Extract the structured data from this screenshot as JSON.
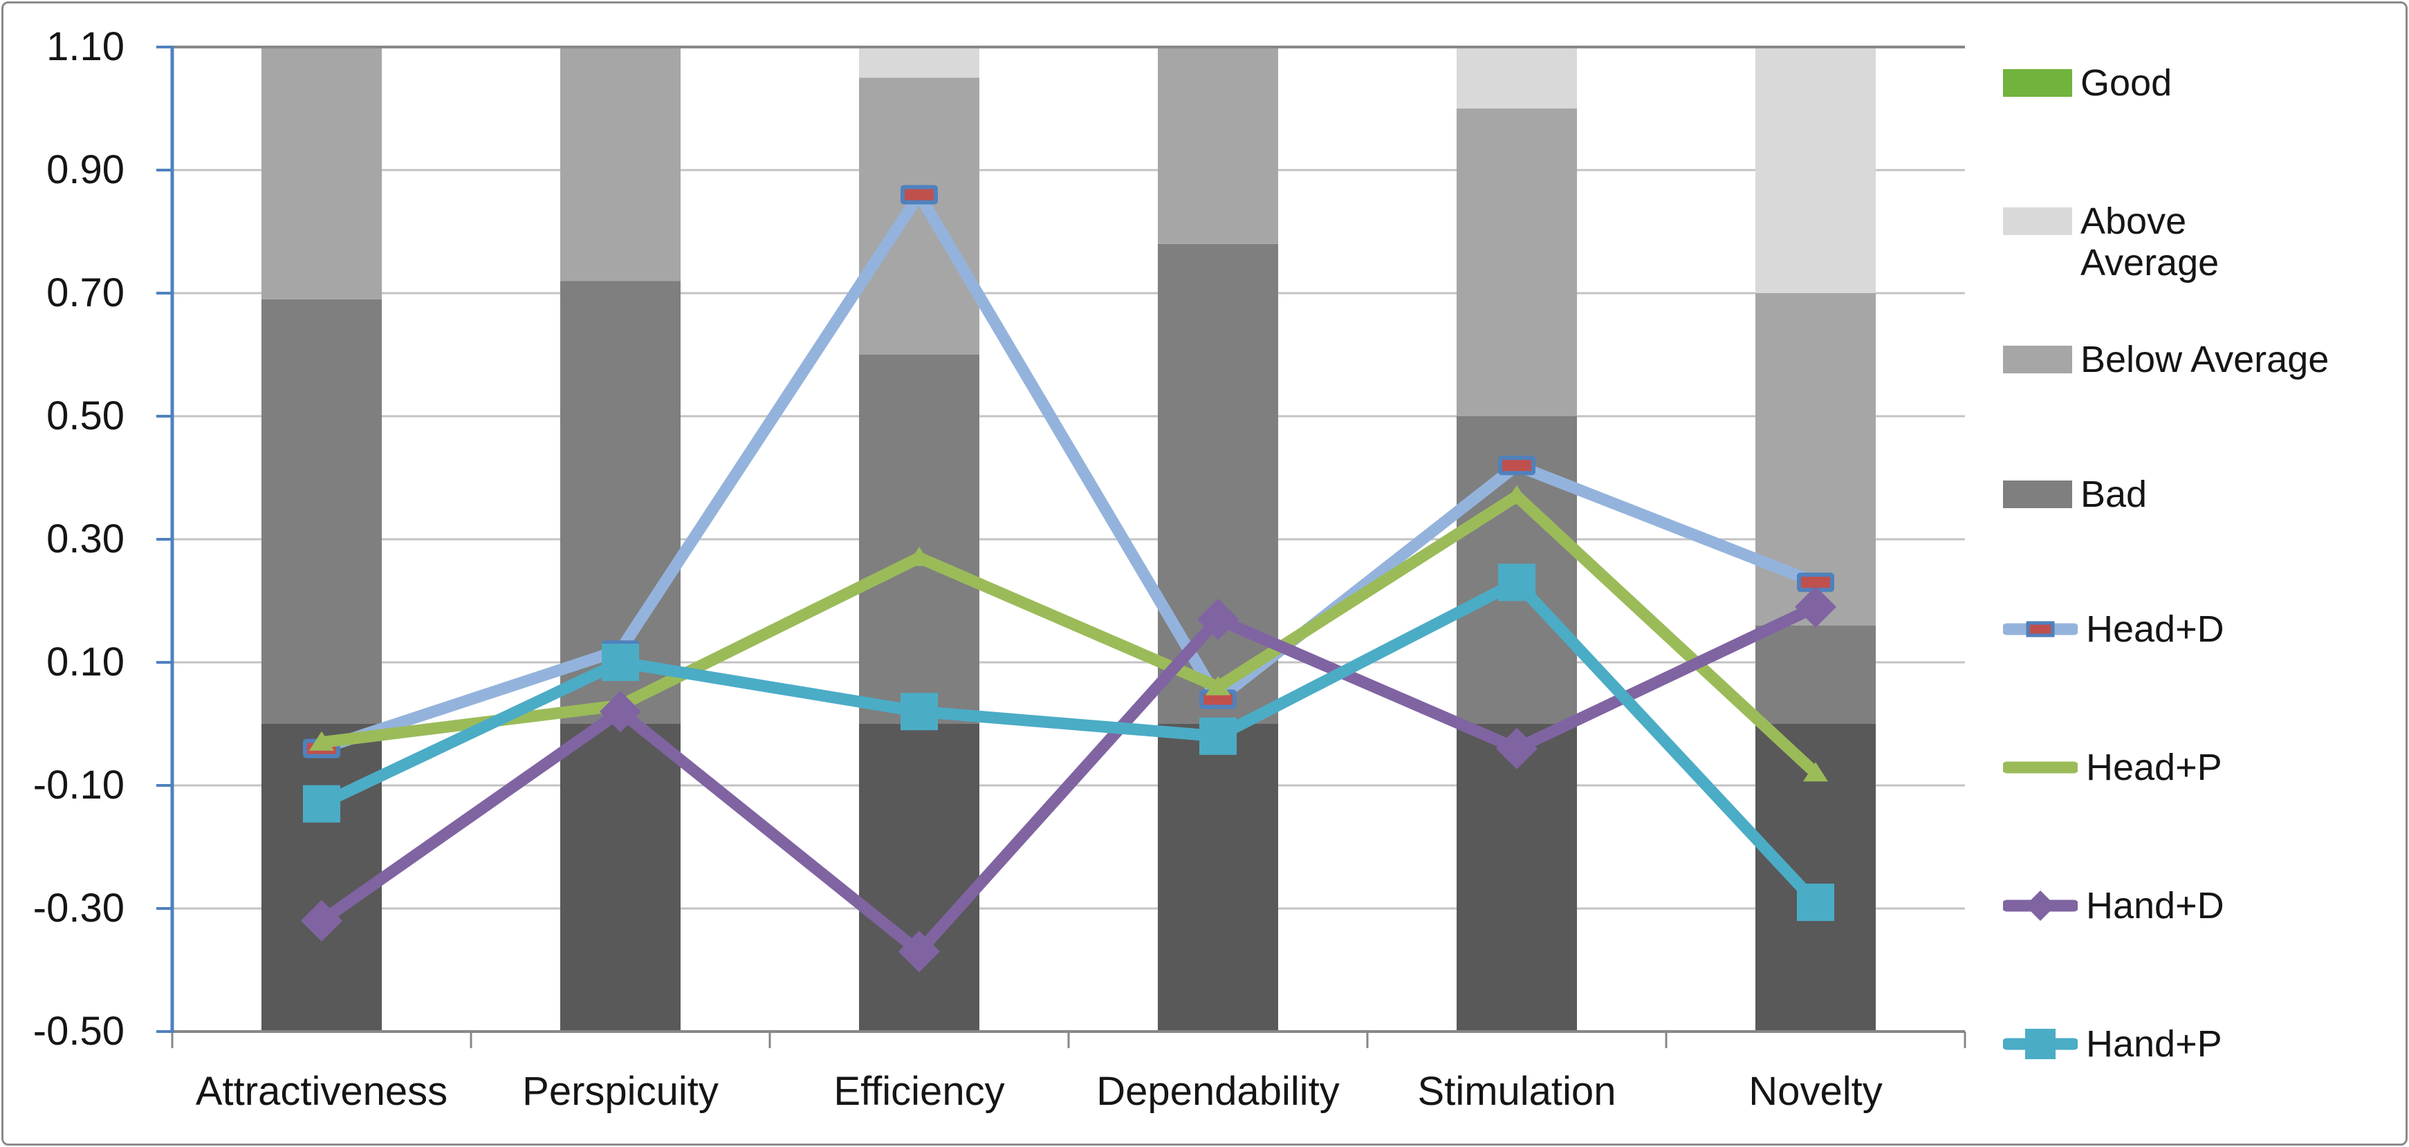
{
  "chart_data": {
    "type": "combo-stacked-bar-line",
    "title": "",
    "categories": [
      "Attractiveness",
      "Perspicuity",
      "Efficiency",
      "Dependability",
      "Stimulation",
      "Novelty"
    ],
    "y_axis": {
      "min": -0.5,
      "max": 1.1,
      "step": 0.2,
      "tick_labels": [
        "1.10",
        "0.90",
        "0.70",
        "0.50",
        "0.30",
        "0.10",
        "-0.10",
        "-0.30",
        "-0.50"
      ],
      "grid": true,
      "axis_line_color": "#4f81bd"
    },
    "bands": {
      "colors": {
        "good": "#71b33c",
        "above_average": "#d9d9d9",
        "below_average": "#a6a6a6",
        "bad": "#7f7f7f",
        "base": "#595959"
      },
      "legend_labels": {
        "good": "Good",
        "above_average": "Above\nAverage",
        "below_average": "Below Average",
        "bad": "Bad"
      }
    },
    "bars": [
      {
        "category": "Attractiveness",
        "segments": [
          {
            "band": "base",
            "from": -0.5,
            "to": 0.0
          },
          {
            "band": "bad",
            "from": 0.0,
            "to": 0.69
          },
          {
            "band": "below_average",
            "from": 0.69,
            "to": 1.1
          }
        ]
      },
      {
        "category": "Perspicuity",
        "segments": [
          {
            "band": "base",
            "from": -0.5,
            "to": 0.0
          },
          {
            "band": "bad",
            "from": 0.0,
            "to": 0.72
          },
          {
            "band": "below_average",
            "from": 0.72,
            "to": 1.1
          }
        ]
      },
      {
        "category": "Efficiency",
        "segments": [
          {
            "band": "base",
            "from": -0.5,
            "to": 0.0
          },
          {
            "band": "bad",
            "from": 0.0,
            "to": 0.6
          },
          {
            "band": "below_average",
            "from": 0.6,
            "to": 1.05
          },
          {
            "band": "above_average",
            "from": 1.05,
            "to": 1.1
          }
        ]
      },
      {
        "category": "Dependability",
        "segments": [
          {
            "band": "base",
            "from": -0.5,
            "to": 0.0
          },
          {
            "band": "bad",
            "from": 0.0,
            "to": 0.78
          },
          {
            "band": "below_average",
            "from": 0.78,
            "to": 1.1
          }
        ]
      },
      {
        "category": "Stimulation",
        "segments": [
          {
            "band": "base",
            "from": -0.5,
            "to": 0.0
          },
          {
            "band": "bad",
            "from": 0.0,
            "to": 0.5
          },
          {
            "band": "below_average",
            "from": 0.5,
            "to": 1.0
          },
          {
            "band": "above_average",
            "from": 1.0,
            "to": 1.1
          }
        ]
      },
      {
        "category": "Novelty",
        "segments": [
          {
            "band": "base",
            "from": -0.5,
            "to": 0.0
          },
          {
            "band": "bad",
            "from": 0.0,
            "to": 0.16
          },
          {
            "band": "below_average",
            "from": 0.16,
            "to": 0.7
          },
          {
            "band": "above_average",
            "from": 0.7,
            "to": 1.1
          }
        ]
      }
    ],
    "series": [
      {
        "name": "Head+D",
        "color": "#94b3dc",
        "marker": "dash-red",
        "marker_color": "#c0504d",
        "marker_border": "#4f81bd",
        "values": [
          -0.04,
          0.12,
          0.86,
          0.04,
          0.42,
          0.23
        ]
      },
      {
        "name": "Head+P",
        "color": "#9bbb59",
        "marker": "triangle",
        "marker_color": "#9bbb59",
        "marker_border": "#9bbb59",
        "values": [
          -0.03,
          0.03,
          0.27,
          0.06,
          0.37,
          -0.08
        ]
      },
      {
        "name": "Hand+D",
        "color": "#8064a2",
        "marker": "diamond",
        "marker_color": "#8064a2",
        "marker_border": "#8064a2",
        "values": [
          -0.32,
          0.02,
          -0.37,
          0.17,
          -0.04,
          0.19
        ]
      },
      {
        "name": "Hand+P",
        "color": "#4bacc6",
        "marker": "square",
        "marker_color": "#4bacc6",
        "marker_border": "#4bacc6",
        "values": [
          -0.13,
          0.1,
          0.02,
          -0.02,
          0.23,
          -0.29
        ]
      }
    ],
    "legend_position": "right",
    "gridline_color": "#c3c3c3",
    "plot_border_color": "#878787"
  }
}
